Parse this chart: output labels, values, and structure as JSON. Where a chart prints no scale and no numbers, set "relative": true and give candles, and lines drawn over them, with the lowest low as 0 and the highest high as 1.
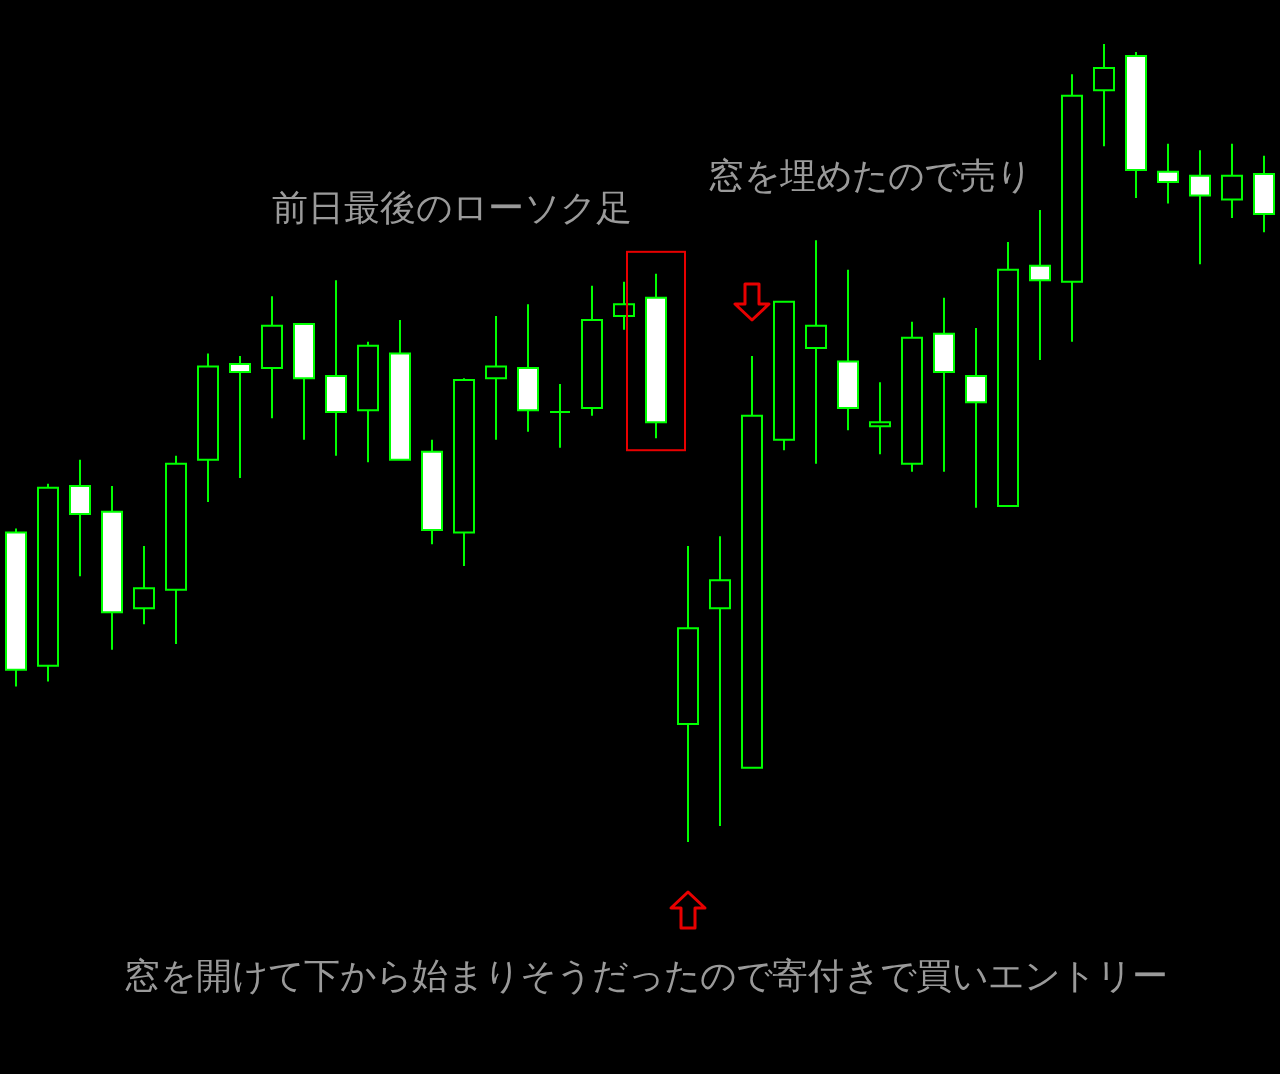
{
  "chart_data": {
    "type": "candlestick",
    "relative": true,
    "color": "#00ff00",
    "categories": [
      null,
      null,
      null,
      null,
      null,
      null,
      null,
      null,
      null,
      null,
      null,
      null,
      null,
      null,
      null,
      null,
      null,
      null,
      null,
      null,
      null,
      null,
      null,
      null,
      null,
      null,
      null,
      null,
      null,
      null,
      null,
      null,
      null,
      null,
      null,
      null,
      null,
      null,
      null,
      null
    ],
    "ohlc": [
      [
        0.388,
        0.393,
        0.195,
        0.216
      ],
      [
        0.221,
        0.449,
        0.201,
        0.444
      ],
      [
        0.446,
        0.479,
        0.333,
        0.411
      ],
      [
        0.414,
        0.446,
        0.241,
        0.288
      ],
      [
        0.293,
        0.371,
        0.273,
        0.318
      ],
      [
        0.316,
        0.484,
        0.248,
        0.474
      ],
      [
        0.479,
        0.612,
        0.426,
        0.596
      ],
      [
        0.599,
        0.609,
        0.456,
        0.589
      ],
      [
        0.594,
        0.684,
        0.531,
        0.647
      ],
      [
        0.649,
        0.649,
        0.504,
        0.581
      ],
      [
        0.584,
        0.704,
        0.484,
        0.539
      ],
      [
        0.541,
        0.627,
        0.476,
        0.622
      ],
      [
        0.612,
        0.654,
        0.479,
        0.479
      ],
      [
        0.489,
        0.504,
        0.373,
        0.391
      ],
      [
        0.388,
        0.581,
        0.346,
        0.579
      ],
      [
        0.581,
        0.659,
        0.504,
        0.596
      ],
      [
        0.594,
        0.674,
        0.514,
        0.541
      ],
      [
        0.539,
        0.574,
        0.494,
        0.539
      ],
      [
        0.544,
        0.697,
        0.534,
        0.654
      ],
      [
        0.659,
        0.702,
        0.642,
        0.674
      ],
      [
        0.682,
        0.712,
        0.506,
        0.526
      ],
      [
        0.148,
        0.371,
        0,
        0.268
      ],
      [
        0.293,
        0.383,
        0.02,
        0.328
      ],
      [
        0.093,
        0.609,
        0.093,
        0.534
      ],
      [
        0.504,
        0.677,
        0.491,
        0.677
      ],
      [
        0.619,
        0.754,
        0.474,
        0.647
      ],
      [
        0.602,
        0.717,
        0.516,
        0.544
      ],
      [
        0.521,
        0.576,
        0.486,
        0.526
      ],
      [
        0.474,
        0.652,
        0.464,
        0.632
      ],
      [
        0.637,
        0.682,
        0.464,
        0.589
      ],
      [
        0.584,
        0.644,
        0.419,
        0.551
      ],
      [
        0.421,
        0.752,
        0.421,
        0.717
      ],
      [
        0.722,
        0.792,
        0.604,
        0.704
      ],
      [
        0.702,
        0.962,
        0.627,
        0.935
      ],
      [
        0.942,
        1,
        0.872,
        0.97
      ],
      [
        0.985,
        0.99,
        0.807,
        0.842
      ],
      [
        0.84,
        0.875,
        0.8,
        0.827
      ],
      [
        0.835,
        0.867,
        0.724,
        0.81
      ],
      [
        0.805,
        0.875,
        0.782,
        0.835
      ],
      [
        0.837,
        0.86,
        0.764,
        0.787
      ]
    ],
    "annotations": [
      "前日最後のローソク足",
      "窓を埋めたので売り",
      "窓を開けて下から始まりそうだったので寄付きで買いエントリー"
    ]
  }
}
